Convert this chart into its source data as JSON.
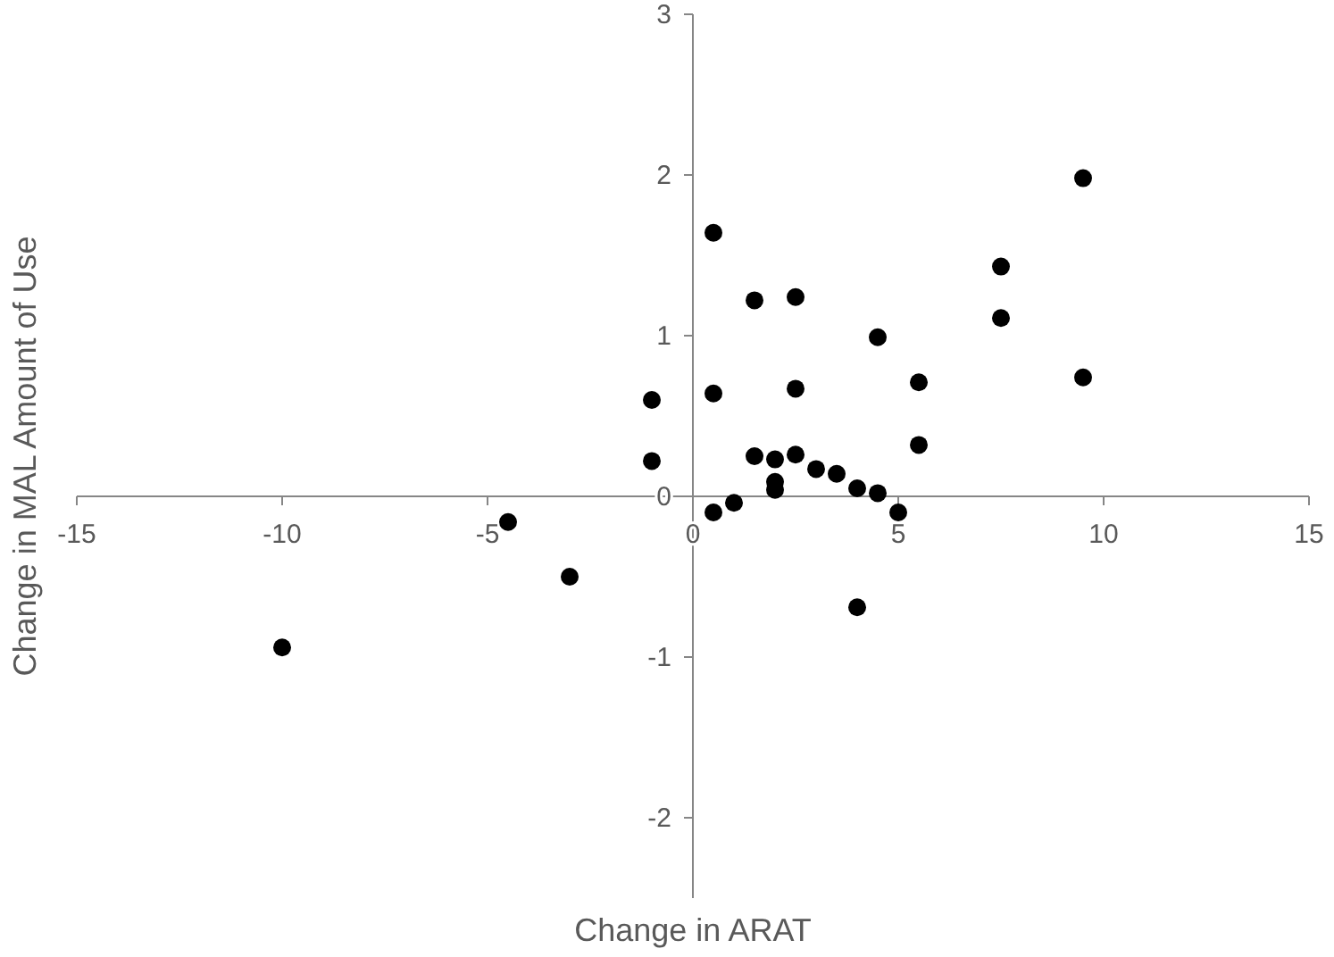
{
  "chart_data": {
    "type": "scatter",
    "xlabel": "Change in ARAT",
    "ylabel": "Change in MAL Amount of Use",
    "xlim": [
      -15,
      15
    ],
    "xticks": [
      -15,
      -10,
      -5,
      0,
      5,
      10,
      15
    ],
    "ylim": [
      -2.5,
      3
    ],
    "yticks": [
      -2,
      -1,
      0,
      1,
      2,
      3
    ],
    "x": [
      -10,
      -4.5,
      -3,
      -1,
      -1,
      0.5,
      0.5,
      0.5,
      1,
      1.5,
      1.5,
      2,
      2,
      2,
      2.5,
      2.5,
      2.5,
      3,
      3.5,
      4,
      4,
      4.5,
      4.5,
      5,
      5.5,
      5.5,
      7.5,
      7.5,
      9.5,
      9.5
    ],
    "values": [
      -0.94,
      -0.16,
      -0.5,
      0.6,
      0.22,
      1.64,
      0.64,
      -0.1,
      -0.04,
      1.22,
      0.25,
      0.23,
      0.09,
      0.04,
      1.24,
      0.67,
      0.26,
      0.17,
      0.14,
      0.05,
      -0.69,
      0.99,
      0.02,
      -0.1,
      0.71,
      0.32,
      1.43,
      1.11,
      1.98,
      0.74
    ],
    "color": "#000000",
    "marker": "circle",
    "grid": false
  }
}
